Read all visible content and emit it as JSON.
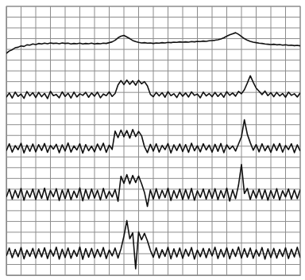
{
  "chart_data": {
    "type": "line",
    "tick_labels": false,
    "grid": true,
    "x": [
      0,
      1,
      2,
      3,
      4,
      5,
      6,
      7,
      8,
      9,
      10,
      11,
      12,
      13,
      14,
      15,
      16,
      17,
      18,
      19,
      20,
      21,
      22,
      23,
      24,
      25,
      26,
      27,
      28,
      29,
      30,
      31,
      32,
      33,
      34,
      35,
      36,
      37,
      38,
      39,
      40,
      41,
      42,
      43,
      44,
      45,
      46,
      47,
      48,
      49,
      50,
      51,
      52,
      53,
      54,
      55,
      56,
      57,
      58,
      59,
      60,
      61,
      62,
      63,
      64,
      65,
      66,
      67,
      68,
      69,
      70,
      71,
      72,
      73,
      74,
      75,
      76,
      77,
      78,
      79,
      80,
      81,
      82,
      83,
      84,
      85,
      86,
      87,
      88,
      89,
      90,
      91,
      92,
      93,
      94,
      95,
      96,
      97,
      98,
      99,
      100
    ],
    "xlim": [
      0,
      100
    ],
    "ylim": [
      0,
      100
    ],
    "xticks": [
      0,
      5,
      10,
      15,
      20,
      25,
      30,
      35,
      40,
      45,
      50,
      55,
      60,
      65,
      70,
      75,
      80,
      85,
      90,
      95,
      100
    ],
    "yticks": [
      0,
      4,
      8,
      12,
      16,
      20,
      24,
      28,
      32,
      36,
      40,
      44,
      48,
      52,
      56,
      60,
      64,
      68,
      72,
      76,
      80,
      84,
      88,
      92,
      96,
      100
    ],
    "series": [
      {
        "color": "#111111",
        "values": [
          82.5,
          83.4,
          83.9,
          84.6,
          84.8,
          85.3,
          85.1,
          85.7,
          85.6,
          86.0,
          85.8,
          86.2,
          86.0,
          86.3,
          86.1,
          86.4,
          86.2,
          86.3,
          86.1,
          86.4,
          86.2,
          86.3,
          86.0,
          86.2,
          86.1,
          86.3,
          86.0,
          86.2,
          86.1,
          86.3,
          86.0,
          86.2,
          86.1,
          86.3,
          86.2,
          86.5,
          86.8,
          87.4,
          88.3,
          88.9,
          89.2,
          88.6,
          88.0,
          87.3,
          86.9,
          86.6,
          86.4,
          86.5,
          86.3,
          86.4,
          86.2,
          86.4,
          86.3,
          86.5,
          86.4,
          86.6,
          86.5,
          86.7,
          86.6,
          86.8,
          86.7,
          86.8,
          86.7,
          86.9,
          86.8,
          87.0,
          86.9,
          87.1,
          87.0,
          87.2,
          87.3,
          87.4,
          87.6,
          87.9,
          88.3,
          88.9,
          89.4,
          89.8,
          90.2,
          89.6,
          88.8,
          88.0,
          87.4,
          87.0,
          86.7,
          86.5,
          86.3,
          86.2,
          86.0,
          85.9,
          85.8,
          85.9,
          85.7,
          85.8,
          85.6,
          85.7,
          85.5,
          85.6,
          85.4,
          85.5,
          85.3
        ]
      },
      {
        "color": "#111111",
        "values": [
          66.2,
          67.8,
          65.9,
          68.1,
          66.5,
          67.4,
          65.8,
          68.3,
          66.7,
          67.9,
          66.1,
          68.0,
          66.4,
          67.6,
          65.7,
          68.4,
          66.8,
          67.2,
          66.0,
          68.2,
          66.5,
          67.7,
          65.9,
          68.1,
          66.3,
          67.5,
          66.9,
          68.0,
          66.2,
          67.8,
          66.6,
          68.1,
          66.0,
          67.4,
          66.8,
          68.2,
          66.5,
          67.6,
          70.8,
          72.4,
          70.9,
          72.6,
          71.0,
          72.3,
          70.7,
          72.5,
          71.2,
          72.0,
          70.4,
          67.3,
          66.4,
          68.0,
          66.7,
          67.9,
          66.2,
          68.3,
          66.8,
          67.5,
          66.1,
          68.0,
          66.6,
          67.8,
          66.3,
          68.2,
          66.9,
          67.4,
          66.0,
          68.1,
          66.7,
          67.6,
          66.4,
          68.0,
          66.5,
          67.7,
          66.2,
          68.3,
          66.9,
          67.8,
          66.6,
          68.4,
          67.5,
          69.0,
          71.5,
          74.2,
          71.8,
          69.6,
          68.4,
          67.2,
          68.5,
          66.8,
          67.9,
          66.4,
          68.0,
          66.7,
          67.6,
          66.2,
          68.1,
          66.9,
          67.5,
          66.3,
          67.8
        ]
      },
      {
        "color": "#111111",
        "values": [
          46.3,
          48.9,
          45.8,
          48.2,
          46.7,
          49.1,
          45.5,
          48.4,
          46.1,
          48.8,
          45.9,
          48.6,
          46.4,
          49.0,
          45.7,
          48.3,
          46.9,
          48.7,
          45.6,
          48.5,
          46.2,
          49.2,
          45.8,
          48.1,
          46.6,
          48.9,
          45.4,
          48.6,
          46.3,
          48.0,
          45.9,
          48.8,
          46.5,
          49.1,
          45.7,
          48.4,
          46.8,
          53.6,
          51.2,
          54.0,
          51.5,
          53.8,
          51.0,
          54.2,
          51.6,
          53.5,
          51.9,
          47.8,
          45.6,
          48.7,
          46.2,
          48.9,
          45.8,
          48.3,
          46.7,
          49.0,
          45.5,
          48.5,
          46.4,
          48.8,
          46.0,
          48.6,
          45.7,
          49.1,
          46.3,
          48.2,
          45.9,
          48.9,
          46.6,
          48.4,
          45.8,
          48.7,
          46.1,
          49.0,
          45.6,
          48.5,
          46.9,
          48.1,
          46.2,
          48.8,
          51.5,
          57.8,
          52.4,
          49.3,
          46.5,
          48.6,
          45.9,
          48.9,
          46.3,
          48.2,
          45.7,
          48.8,
          46.4,
          49.0,
          45.8,
          48.3,
          46.7,
          48.9,
          45.6,
          48.5,
          46.2
        ]
      },
      {
        "color": "#111111",
        "values": [
          29.1,
          32.0,
          28.3,
          31.6,
          28.8,
          32.3,
          27.9,
          31.4,
          29.0,
          32.1,
          28.2,
          31.8,
          28.6,
          32.4,
          28.0,
          31.5,
          29.2,
          32.2,
          27.8,
          31.7,
          28.5,
          32.0,
          28.1,
          31.3,
          28.9,
          32.5,
          27.7,
          31.9,
          28.4,
          32.1,
          28.7,
          31.6,
          28.0,
          32.3,
          28.6,
          31.2,
          29.1,
          31.9,
          27.5,
          36.8,
          34.2,
          37.4,
          34.0,
          37.1,
          34.5,
          36.9,
          34.1,
          30.8,
          25.6,
          31.7,
          28.3,
          32.2,
          28.5,
          31.6,
          28.9,
          32.4,
          27.8,
          31.5,
          28.7,
          32.0,
          28.2,
          31.9,
          28.4,
          32.3,
          27.9,
          31.4,
          29.0,
          32.1,
          28.3,
          31.8,
          28.6,
          32.2,
          28.1,
          31.5,
          28.8,
          32.4,
          27.6,
          31.7,
          28.5,
          33.5,
          41.2,
          30.4,
          32.3,
          28.2,
          31.6,
          28.7,
          32.0,
          28.4,
          31.8,
          27.9,
          31.5,
          28.6,
          32.2,
          28.0,
          31.4,
          29.1,
          32.1,
          28.3,
          31.7,
          28.5,
          31.9
        ]
      },
      {
        "color": "#111111",
        "values": [
          7.2,
          10.1,
          6.5,
          9.6,
          6.9,
          10.3,
          6.1,
          9.4,
          7.0,
          10.0,
          6.4,
          9.8,
          6.8,
          10.2,
          6.2,
          9.5,
          7.1,
          10.4,
          6.0,
          9.7,
          6.6,
          10.1,
          6.3,
          9.3,
          7.0,
          10.5,
          5.9,
          9.9,
          6.7,
          10.0,
          6.5,
          9.6,
          6.9,
          10.3,
          6.2,
          9.4,
          7.2,
          10.1,
          6.4,
          9.8,
          14.5,
          20.3,
          13.6,
          15.8,
          2.4,
          16.1,
          13.2,
          15.6,
          12.8,
          9.3,
          6.7,
          10.2,
          6.4,
          9.5,
          7.0,
          10.4,
          6.1,
          9.8,
          6.8,
          10.1,
          6.3,
          9.7,
          7.1,
          10.3,
          6.0,
          9.4,
          6.9,
          10.0,
          6.5,
          9.9,
          7.2,
          10.4,
          6.2,
          9.6,
          6.8,
          10.2,
          6.1,
          9.7,
          7.0,
          10.5,
          6.4,
          9.9,
          6.7,
          10.1,
          6.3,
          9.5,
          7.1,
          10.3,
          6.0,
          9.8,
          6.6,
          10.0,
          6.4,
          9.6,
          7.0,
          10.2,
          6.2,
          9.7,
          6.8,
          10.4,
          6.5
        ]
      }
    ]
  }
}
